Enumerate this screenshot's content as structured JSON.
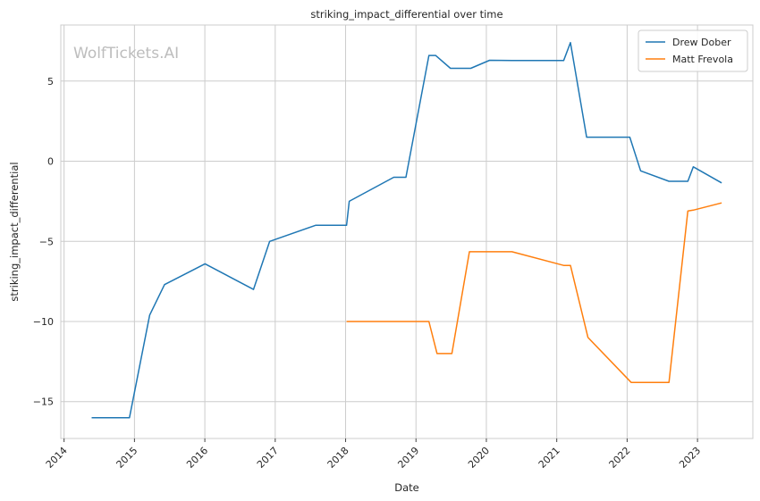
{
  "chart_data": {
    "type": "line",
    "title": "striking_impact_differential over time",
    "xlabel": "Date",
    "ylabel": "striking_impact_differential",
    "watermark": "WolfTickets.AI",
    "x_ticks": [
      "2014",
      "2015",
      "2016",
      "2017",
      "2018",
      "2019",
      "2020",
      "2021",
      "2022",
      "2023"
    ],
    "y_ticks": [
      -15,
      -10,
      -5,
      0,
      5
    ],
    "xlim": [
      "2013-12-15",
      "2023-10-15"
    ],
    "ylim": [
      -17.3,
      8.5
    ],
    "grid": true,
    "legend_position": "top-right",
    "series": [
      {
        "name": "Drew Dober",
        "color": "#1f77b4",
        "points": [
          [
            "2014-05-24",
            -16.0
          ],
          [
            "2014-12-06",
            -16.0
          ],
          [
            "2015-03-21",
            -9.6
          ],
          [
            "2015-06-06",
            -7.7
          ],
          [
            "2016-01-02",
            -6.4
          ],
          [
            "2016-09-10",
            -8.0
          ],
          [
            "2016-12-03",
            -5.0
          ],
          [
            "2017-07-29",
            -4.0
          ],
          [
            "2018-01-06",
            -4.0
          ],
          [
            "2018-01-20",
            -2.5
          ],
          [
            "2018-09-08",
            -1.0
          ],
          [
            "2018-11-10",
            -1.0
          ],
          [
            "2019-03-09",
            6.6
          ],
          [
            "2019-04-13",
            6.6
          ],
          [
            "2019-06-29",
            5.8
          ],
          [
            "2019-10-12",
            5.8
          ],
          [
            "2020-01-18",
            6.3
          ],
          [
            "2020-05-13",
            6.28
          ],
          [
            "2021-02-06",
            6.28
          ],
          [
            "2021-03-13",
            7.4
          ],
          [
            "2021-06-05",
            1.5
          ],
          [
            "2022-01-15",
            1.5
          ],
          [
            "2022-03-12",
            -0.6
          ],
          [
            "2022-08-06",
            -1.25
          ],
          [
            "2022-11-12",
            -1.25
          ],
          [
            "2022-12-10",
            -0.35
          ],
          [
            "2023-05-06",
            -1.35
          ]
        ]
      },
      {
        "name": "Matt Frevola",
        "color": "#ff7f0e",
        "points": [
          [
            "2018-01-06",
            -10.0
          ],
          [
            "2019-03-09",
            -10.0
          ],
          [
            "2019-04-20",
            -12.0
          ],
          [
            "2019-07-06",
            -12.0
          ],
          [
            "2019-10-05",
            -5.65
          ],
          [
            "2020-05-13",
            -5.65
          ],
          [
            "2021-02-06",
            -6.5
          ],
          [
            "2021-03-13",
            -6.5
          ],
          [
            "2021-06-12",
            -11.0
          ],
          [
            "2022-01-22",
            -13.8
          ],
          [
            "2022-08-06",
            -13.8
          ],
          [
            "2022-11-12",
            -3.1
          ],
          [
            "2022-12-10",
            -3.05
          ],
          [
            "2023-05-06",
            -2.6
          ]
        ]
      }
    ]
  }
}
